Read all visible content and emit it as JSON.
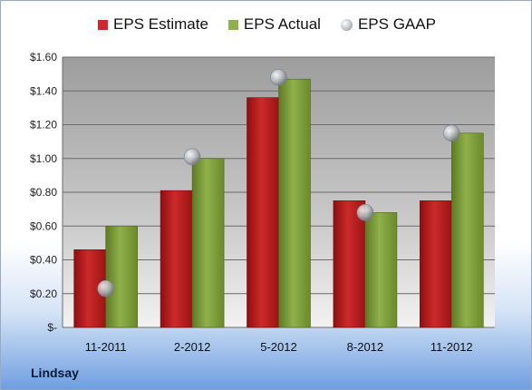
{
  "company": "Lindsay",
  "colors": {
    "estimate": "#cc2a2a",
    "actual": "#8fb04a",
    "gaap": "#b8bcc2"
  },
  "chart_data": {
    "type": "bar",
    "categories": [
      "11-2011",
      "2-2012",
      "5-2012",
      "8-2012",
      "11-2012"
    ],
    "series": [
      {
        "name": "EPS Estimate",
        "values": [
          0.46,
          0.81,
          1.36,
          0.75,
          0.75
        ]
      },
      {
        "name": "EPS Actual",
        "values": [
          0.6,
          1.0,
          1.47,
          0.68,
          1.15
        ]
      },
      {
        "name": "EPS GAAP",
        "marker": "circle",
        "values": [
          0.23,
          1.01,
          1.48,
          0.68,
          1.15
        ]
      }
    ],
    "y_ticks": [
      "$-",
      "$0.20",
      "$0.40",
      "$0.60",
      "$0.80",
      "$1.00",
      "$1.20",
      "$1.40",
      "$1.60"
    ],
    "ylim": [
      0,
      1.6
    ],
    "grid": true,
    "legend_position": "top"
  }
}
